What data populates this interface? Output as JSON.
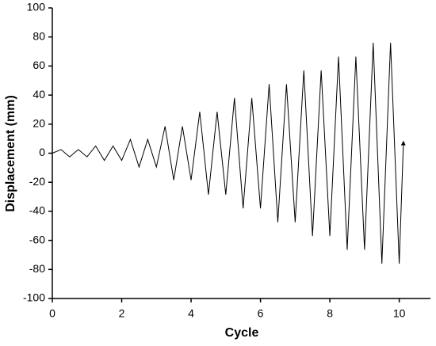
{
  "chart_data": {
    "type": "line",
    "xlabel": "Cycle",
    "ylabel": "Displacement (mm)",
    "x": [
      0,
      0.25,
      0.5,
      0.75,
      1,
      1.25,
      1.5,
      1.75,
      2,
      2.25,
      2.5,
      2.75,
      3,
      3.25,
      3.5,
      3.75,
      4,
      4.25,
      4.5,
      4.75,
      5,
      5.25,
      5.5,
      5.75,
      6,
      6.25,
      6.5,
      6.75,
      7,
      7.25,
      7.5,
      7.75,
      8,
      8.25,
      8.5,
      8.75,
      9,
      9.25,
      9.5,
      9.75,
      10,
      10.12
    ],
    "values": [
      0,
      2.5,
      -2.5,
      2.5,
      -2.5,
      5,
      -5,
      5,
      -5,
      9.5,
      -9.5,
      9.5,
      -9.5,
      18.5,
      -18.5,
      18.5,
      -18.5,
      28.5,
      -28.5,
      28.5,
      -28.5,
      38,
      -38,
      38,
      -38,
      47.5,
      -47.5,
      47.5,
      -47.5,
      57,
      -57,
      57,
      -57,
      66.5,
      -66.5,
      66.5,
      -66.5,
      76,
      -76,
      76,
      -76,
      7
    ],
    "color": "#000000",
    "xlim": [
      0,
      10.9
    ],
    "xticks": [
      0,
      2,
      4,
      6,
      8,
      10
    ],
    "ylim": [
      -100,
      100
    ],
    "yticks": [
      -100,
      -80,
      -60,
      -40,
      -20,
      0,
      20,
      40,
      60,
      80,
      100
    ]
  }
}
